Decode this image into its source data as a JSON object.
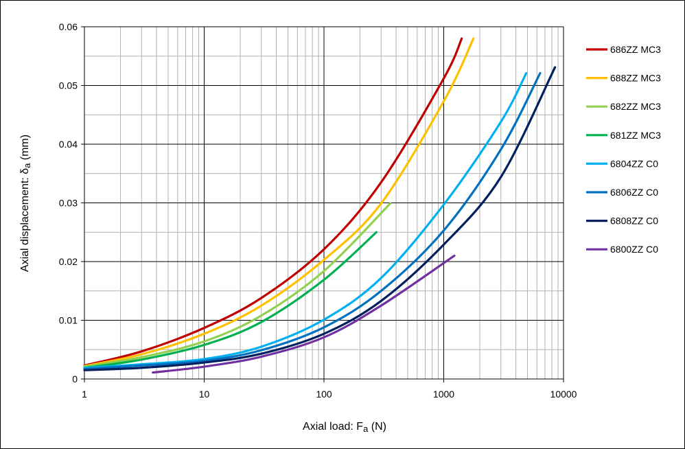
{
  "chart_data": {
    "type": "line",
    "title": "",
    "xlabel": {
      "main": "Axial load: F",
      "sub": "a",
      "unit": " (N)"
    },
    "ylabel": {
      "main": "Axial displacement: δ",
      "sub": "a",
      "unit": " (mm)"
    },
    "xscale": "log",
    "xlim": [
      1,
      10000
    ],
    "ylim": [
      0,
      0.06
    ],
    "xticks": [
      1,
      10,
      100,
      1000,
      10000
    ],
    "xtick_labels": [
      "1",
      "10",
      "100",
      "1000",
      "10000"
    ],
    "yticks": [
      0,
      0.01,
      0.02,
      0.03,
      0.04,
      0.05,
      0.06
    ],
    "ytick_labels": [
      "0",
      "0.01",
      "0.02",
      "0.03",
      "0.04",
      "0.05",
      "0.06"
    ],
    "grid": true,
    "legend_position": "right",
    "series": [
      {
        "name": "686ZZ MC3",
        "color": "#C00000",
        "x": [
          1,
          3,
          10,
          30,
          100,
          300,
          1000,
          1413
        ],
        "y": [
          0.0023,
          0.0047,
          0.0087,
          0.0138,
          0.0221,
          0.0335,
          0.0512,
          0.058
        ]
      },
      {
        "name": "688ZZ MC3",
        "color": "#FFC000",
        "x": [
          1,
          3,
          10,
          30,
          100,
          300,
          1000,
          1770
        ],
        "y": [
          0.0022,
          0.0042,
          0.0077,
          0.0125,
          0.0203,
          0.0299,
          0.0473,
          0.058
        ]
      },
      {
        "name": "682ZZ MC3",
        "color": "#92D050",
        "x": [
          1,
          3,
          10,
          30,
          100,
          358
        ],
        "y": [
          0.0021,
          0.0037,
          0.0064,
          0.0108,
          0.0184,
          0.0299
        ]
      },
      {
        "name": "681ZZ MC3",
        "color": "#00B050",
        "x": [
          1,
          3,
          10,
          30,
          100,
          274
        ],
        "y": [
          0.0019,
          0.0033,
          0.0058,
          0.0097,
          0.0169,
          0.025
        ]
      },
      {
        "name": "6804ZZ C0",
        "color": "#00B0F0",
        "x": [
          1,
          3,
          10,
          30,
          100,
          300,
          1000,
          3000,
          4885
        ],
        "y": [
          0.0019,
          0.0025,
          0.0034,
          0.0055,
          0.0101,
          0.0172,
          0.0297,
          0.0438,
          0.0521
        ]
      },
      {
        "name": "6806ZZ C0",
        "color": "#0070C0",
        "x": [
          1,
          3,
          10,
          30,
          100,
          300,
          1000,
          3000,
          6380
        ],
        "y": [
          0.0017,
          0.0023,
          0.0031,
          0.0049,
          0.0088,
          0.015,
          0.0253,
          0.0391,
          0.0521
        ]
      },
      {
        "name": "6808ZZ C0",
        "color": "#002060",
        "x": [
          1,
          3,
          10,
          30,
          100,
          300,
          1000,
          3000,
          8490
        ],
        "y": [
          0.0015,
          0.0019,
          0.0028,
          0.0043,
          0.0077,
          0.0133,
          0.0229,
          0.0344,
          0.0531
        ]
      },
      {
        "name": "6800ZZ C0",
        "color": "#7030A0",
        "x": [
          3.73,
          10,
          30,
          100,
          300,
          1227
        ],
        "y": [
          0.0011,
          0.0021,
          0.0038,
          0.0071,
          0.0125,
          0.021
        ]
      }
    ]
  }
}
